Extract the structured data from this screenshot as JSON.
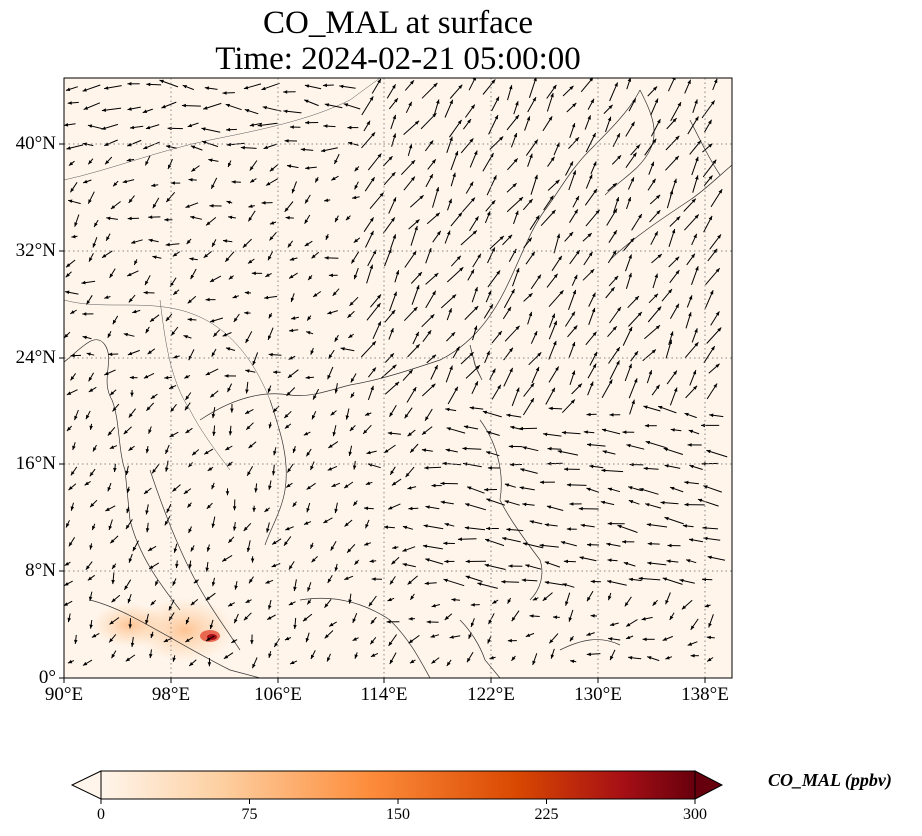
{
  "title": {
    "line1": "CO_MAL at surface",
    "line2": "Time: 2024-02-21 05:00:00"
  },
  "map": {
    "extent": {
      "lon": [
        90,
        140
      ],
      "lat": [
        0,
        45
      ]
    },
    "gridlines": "dotted",
    "field": "CO_MAL",
    "vector_field": "surface wind",
    "lat_ticks": [
      "0°",
      "8°N",
      "16°N",
      "24°N",
      "32°N",
      "40°N"
    ],
    "lon_ticks": [
      "90°E",
      "98°E",
      "106°E",
      "114°E",
      "122°E",
      "130°E",
      "138°E"
    ],
    "hotspot": {
      "location": "Sumatra / Malacca Strait",
      "approx_value_ppbv": 250
    }
  },
  "colorbar": {
    "label": "CO_MAL (ppbv)",
    "ticks": [
      "0",
      "75",
      "150",
      "225",
      "300"
    ],
    "range": [
      0,
      300
    ],
    "colormap": [
      "#fff5eb",
      "#fdd0a2",
      "#fd8d3c",
      "#d94801",
      "#a50f15",
      "#67000d"
    ]
  }
}
